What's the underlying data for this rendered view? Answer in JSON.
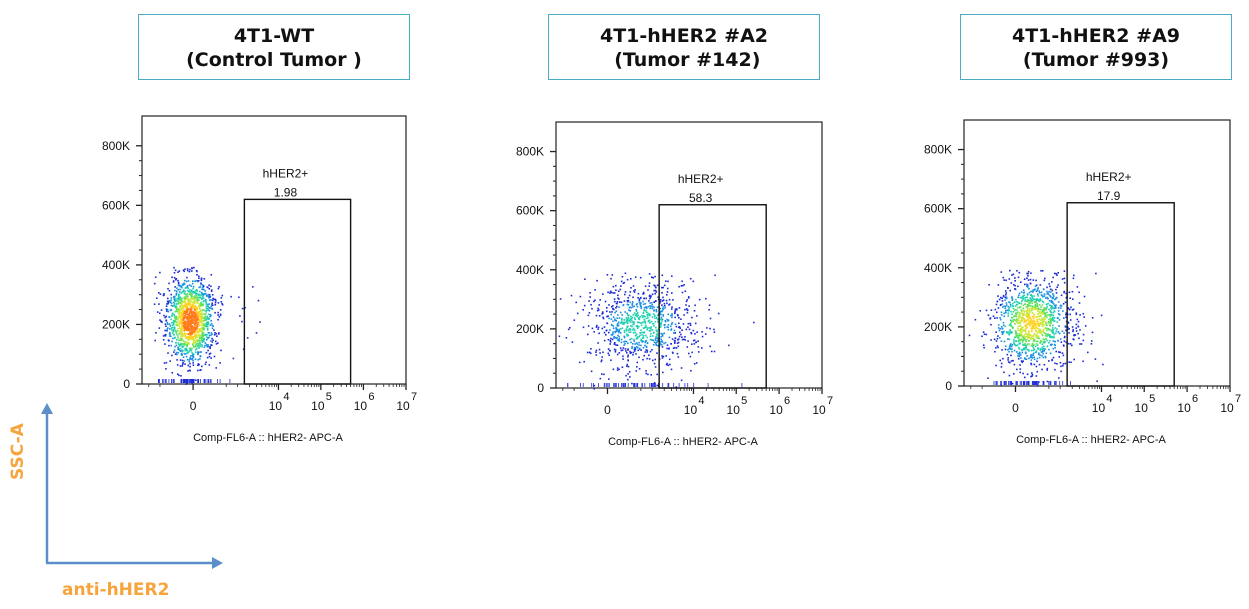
{
  "panels": [
    {
      "title_line1": "4T1-WT",
      "title_line2": "(Control Tumor )",
      "gate_label": "hHER2+",
      "gate_value": "1.98"
    },
    {
      "title_line1": "4T1-hHER2 #A2",
      "title_line2": " (Tumor #142)",
      "gate_label": "hHER2+",
      "gate_value": "58.3"
    },
    {
      "title_line1": "4T1-hHER2 #A9",
      "title_line2": "(Tumor #993)",
      "gate_label": "hHER2+",
      "gate_value": "17.9"
    }
  ],
  "corner_axes": {
    "y_label": "SSC-A",
    "x_label": "anti-hHER2",
    "label_color": "#f7a43c",
    "arrow_color": "#5b8fc9"
  },
  "chart_data": [
    {
      "type": "scatter",
      "title": "4T1-WT (Control Tumor )",
      "xlabel": "Comp-FL6-A :: hHER2- APC-A",
      "ylabel": "",
      "x_scale": "biexponential",
      "yticks": [
        "0",
        "200K",
        "400K",
        "600K",
        "800K"
      ],
      "xtick_labels": [
        "0",
        "10^4",
        "10^5",
        "10^6",
        "10^7"
      ],
      "ylim": [
        0,
        900000
      ],
      "gate": {
        "name": "hHER2+",
        "percent": 1.98,
        "x_range": [
          "~1.5×10^3",
          "~5×10^5"
        ],
        "y_range": [
          0,
          620000
        ]
      },
      "population": {
        "center_y": 210000,
        "y_spread": [
          0,
          400000
        ],
        "x_position": "negative (around 0)",
        "percent_positive": 1.98
      }
    },
    {
      "type": "scatter",
      "title": "4T1-hHER2 #A2 (Tumor #142)",
      "xlabel": "Comp-FL6-A :: hHER2- APC-A",
      "ylabel": "",
      "x_scale": "biexponential",
      "yticks": [
        "0",
        "200K",
        "400K",
        "600K",
        "800K"
      ],
      "xtick_labels": [
        "0",
        "10^4",
        "10^5",
        "10^6",
        "10^7"
      ],
      "ylim": [
        0,
        900000
      ],
      "gate": {
        "name": "hHER2+",
        "percent": 58.3,
        "x_range": [
          "~1.5×10^3",
          "~5×10^5"
        ],
        "y_range": [
          0,
          620000
        ]
      },
      "population": {
        "center_y": 220000,
        "y_spread": [
          0,
          400000
        ],
        "x_position": "spread from 0 to ~10^4.5",
        "percent_positive": 58.3
      }
    },
    {
      "type": "scatter",
      "title": "4T1-hHER2 #A9 (Tumor #993)",
      "xlabel": "Comp-FL6-A :: hHER2- APC-A",
      "ylabel": "",
      "x_scale": "biexponential",
      "yticks": [
        "0",
        "200K",
        "400K",
        "600K",
        "800K"
      ],
      "xtick_labels": [
        "0",
        "10^4",
        "10^5",
        "10^6",
        "10^7"
      ],
      "ylim": [
        0,
        900000
      ],
      "gate": {
        "name": "hHER2+",
        "percent": 17.9,
        "x_range": [
          "~1.5×10^3",
          "~5×10^5"
        ],
        "y_range": [
          0,
          620000
        ]
      },
      "population": {
        "center_y": 240000,
        "y_spread": [
          0,
          400000
        ],
        "x_position": "around 0 to low positive",
        "percent_positive": 17.9
      }
    }
  ]
}
